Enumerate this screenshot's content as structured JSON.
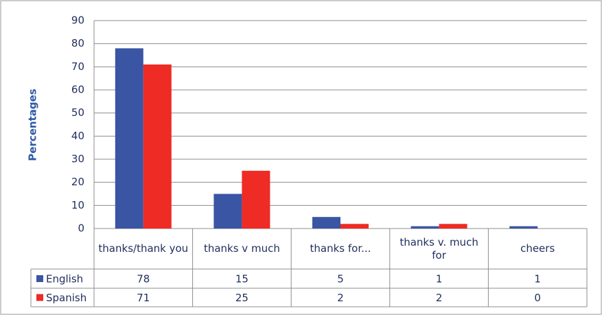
{
  "chart_data": {
    "type": "bar",
    "y_label": "Percentages",
    "categories": [
      "thanks/thank you",
      "thanks v much",
      "thanks for...",
      "thanks v. much for",
      "cheers"
    ],
    "series": [
      {
        "name": "English",
        "color": "#3a55a4",
        "values": [
          78,
          15,
          5,
          1,
          1
        ]
      },
      {
        "name": "Spanish",
        "color": "#ee2b24",
        "values": [
          71,
          25,
          2,
          2,
          0
        ]
      }
    ],
    "ylim": [
      0,
      90
    ],
    "yticks": [
      0,
      10,
      20,
      30,
      40,
      50,
      60,
      70,
      80,
      90
    ],
    "grid": true
  }
}
